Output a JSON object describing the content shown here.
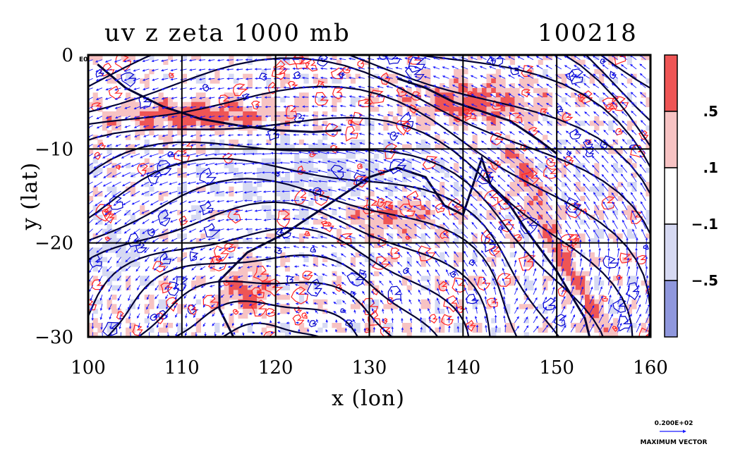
{
  "chart_data": {
    "type": "heatmap",
    "title": "uv z zeta 1000 mb",
    "date_label": "100218",
    "xlabel": "x (lon)",
    "ylabel": "y (lat)",
    "xlim": [
      100,
      160
    ],
    "ylim": [
      -30,
      0
    ],
    "x_ticks": [
      "100",
      "110",
      "120",
      "130",
      "140",
      "150",
      "160"
    ],
    "y_ticks": [
      "0",
      "−10",
      "−20",
      "−30"
    ],
    "grid": true,
    "layers": [
      "shaded vorticity (zeta)",
      "geopotential height contours (z)",
      "wind vectors (uv)"
    ],
    "colorbar": {
      "labels": [
        ".5",
        ".1",
        "−.1",
        "−.5"
      ],
      "levels": [
        {
          "name": "strong positive",
          "color": "#ee5555"
        },
        {
          "name": "weak positive",
          "color": "#f7c3c3"
        },
        {
          "name": "neutral",
          "color": "#ffffff"
        },
        {
          "name": "weak negative",
          "color": "#d6d9f2"
        },
        {
          "name": "strong negative",
          "color": "#8f97dd"
        }
      ]
    },
    "vector_reference": {
      "magnitude": "0.200E+02",
      "label": "MAXIMUM VECTOR"
    },
    "corner_tag": "E0",
    "colors": {
      "contour": "#000033",
      "vector": "#1a1aff",
      "pos_line": "#ff2222",
      "neg_line": "#0000cc"
    }
  }
}
